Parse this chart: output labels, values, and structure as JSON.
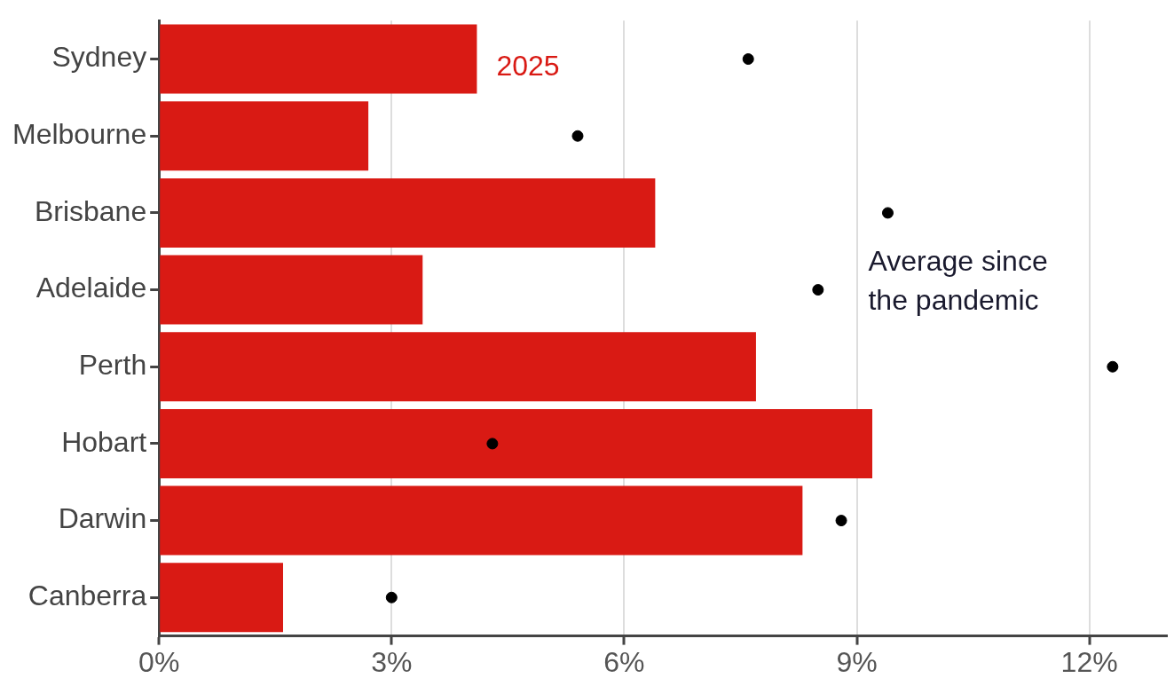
{
  "chart_data": {
    "type": "bar",
    "orientation": "horizontal",
    "categories": [
      "Sydney",
      "Melbourne",
      "Brisbane",
      "Adelaide",
      "Perth",
      "Hobart",
      "Darwin",
      "Canberra"
    ],
    "series": [
      {
        "name": "2025",
        "color": "#d91a14",
        "values": [
          4.1,
          2.7,
          6.4,
          3.4,
          7.7,
          9.2,
          8.3,
          1.6
        ]
      },
      {
        "name": "Average since the pandemic",
        "type": "scatter",
        "color": "#000000",
        "values": [
          7.6,
          5.4,
          9.4,
          8.5,
          12.3,
          4.3,
          8.8,
          3.0
        ]
      }
    ],
    "xlim": [
      0,
      13
    ],
    "xticks": [
      {
        "value": 0,
        "label": "0%"
      },
      {
        "value": 3,
        "label": "3%"
      },
      {
        "value": 6,
        "label": "6%"
      },
      {
        "value": 9,
        "label": "9%"
      },
      {
        "value": 12,
        "label": "12%"
      }
    ],
    "grid": "x",
    "marker": "circle"
  }
}
